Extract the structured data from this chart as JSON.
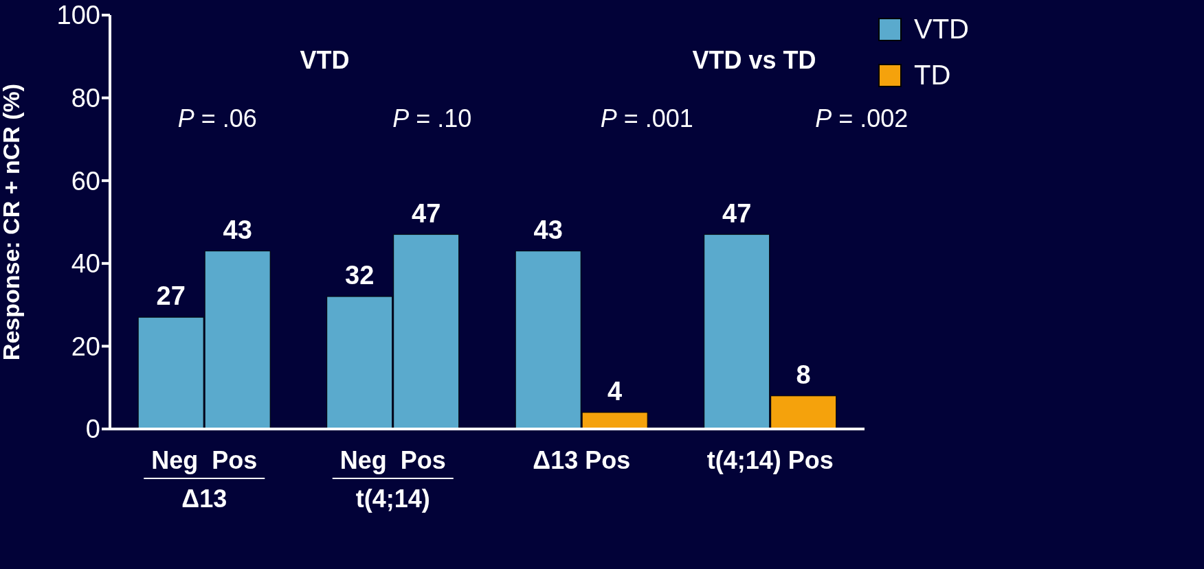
{
  "chart_data": {
    "type": "bar",
    "categories": [
      "Neg  Pos",
      "Neg  Pos",
      "Δ13 Pos",
      "t(4;14) Pos"
    ],
    "series": [
      {
        "name": "VTD",
        "color": "#5aaacd",
        "values": [
          27,
          32,
          43,
          47
        ]
      },
      {
        "color": "#5aaacd",
        "values": [
          43,
          47,
          null,
          null
        ]
      },
      {
        "name": "TD",
        "color": "#f5a20c",
        "values": [
          null,
          null,
          4,
          8
        ]
      }
    ],
    "ylabel": "Response: CR + nCR (%)",
    "ylim": [
      0,
      100
    ],
    "yticks": [
      0,
      20,
      40,
      60,
      80,
      100
    ],
    "annotations": [
      "VTD",
      "VTD vs TD",
      "P = .06",
      "P = .10",
      "P = .001",
      "P = .002",
      "Δ13",
      "t(4;14)"
    ],
    "data_labels": true,
    "legend": "top right",
    "grid": false
  }
}
